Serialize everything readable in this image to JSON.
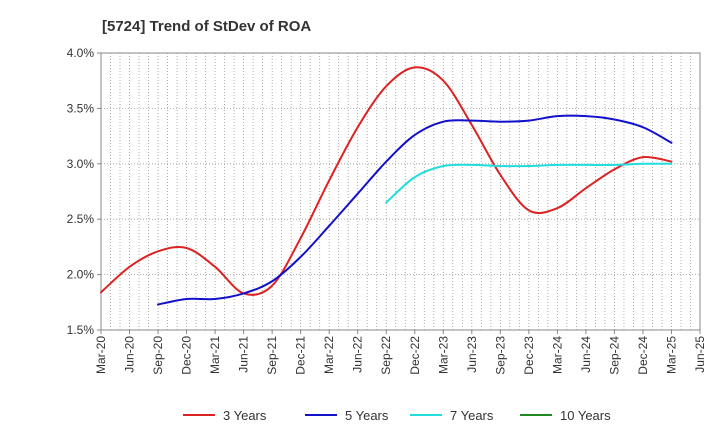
{
  "chart_data": {
    "type": "line",
    "title": "[5724]  Trend of StDev of ROA",
    "xlabel": "",
    "ylabel": "",
    "x_ticks": [
      "Mar-20",
      "Jun-20",
      "Sep-20",
      "Dec-20",
      "Mar-21",
      "Jun-21",
      "Sep-21",
      "Dec-21",
      "Mar-22",
      "Jun-22",
      "Sep-22",
      "Dec-22",
      "Mar-23",
      "Jun-23",
      "Sep-23",
      "Dec-23",
      "Mar-24",
      "Jun-24",
      "Sep-24",
      "Dec-24",
      "Mar-25",
      "Jun-25"
    ],
    "y_ticks": [
      "1.5%",
      "2.0%",
      "2.5%",
      "3.0%",
      "3.5%",
      "4.0%"
    ],
    "ylim": [
      1.5,
      4.0
    ],
    "grid": true,
    "legend_position": "bottom",
    "series": [
      {
        "name": "3 Years",
        "color": "#dd2222",
        "x": [
          "Mar-20",
          "Jun-20",
          "Sep-20",
          "Dec-20",
          "Mar-21",
          "Jun-21",
          "Sep-21",
          "Dec-21",
          "Mar-22",
          "Jun-22",
          "Sep-22",
          "Dec-22",
          "Mar-23",
          "Jun-23",
          "Sep-23",
          "Dec-23",
          "Mar-24",
          "Jun-24",
          "Sep-24",
          "Dec-24",
          "Mar-25"
        ],
        "values": [
          1.84,
          2.07,
          2.21,
          2.24,
          2.07,
          1.83,
          1.9,
          2.33,
          2.85,
          3.33,
          3.7,
          3.87,
          3.75,
          3.35,
          2.9,
          2.58,
          2.6,
          2.78,
          2.95,
          3.06,
          3.02
        ]
      },
      {
        "name": "5 Years",
        "color": "#1111cc",
        "x": [
          "Sep-20",
          "Dec-20",
          "Mar-21",
          "Jun-21",
          "Sep-21",
          "Dec-21",
          "Mar-22",
          "Jun-22",
          "Sep-22",
          "Dec-22",
          "Mar-23",
          "Jun-23",
          "Sep-23",
          "Dec-23",
          "Mar-24",
          "Jun-24",
          "Sep-24",
          "Dec-24",
          "Mar-25"
        ],
        "values": [
          1.73,
          1.78,
          1.78,
          1.83,
          1.94,
          2.16,
          2.44,
          2.73,
          3.02,
          3.26,
          3.38,
          3.39,
          3.38,
          3.39,
          3.43,
          3.43,
          3.4,
          3.33,
          3.19
        ]
      },
      {
        "name": "7 Years",
        "color": "#22dddd",
        "x": [
          "Sep-22",
          "Dec-22",
          "Mar-23",
          "Jun-23",
          "Sep-23",
          "Dec-23",
          "Mar-24",
          "Jun-24",
          "Sep-24",
          "Dec-24",
          "Mar-25"
        ],
        "values": [
          2.65,
          2.88,
          2.98,
          2.99,
          2.98,
          2.98,
          2.99,
          2.99,
          2.99,
          3.0,
          3.0
        ]
      },
      {
        "name": "10 Years",
        "color": "#228822",
        "x": [],
        "values": []
      }
    ]
  }
}
